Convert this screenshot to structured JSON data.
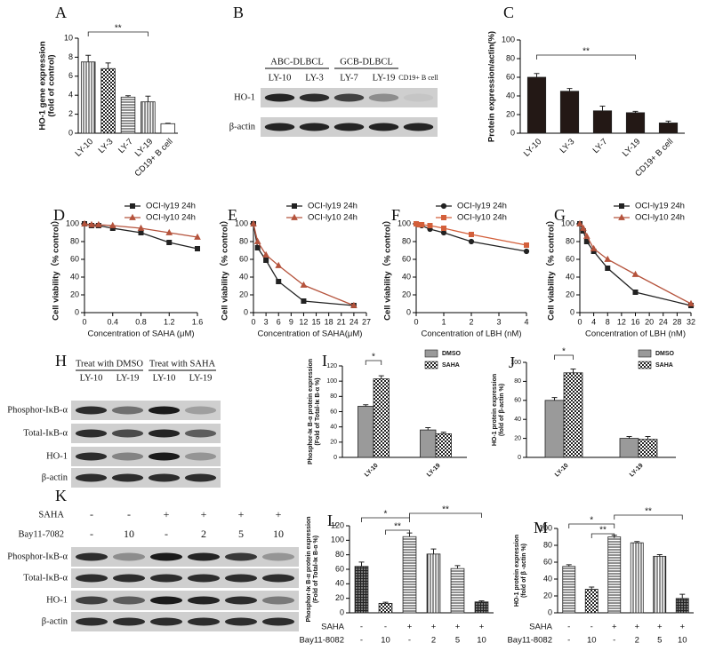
{
  "chart_data": [
    {
      "type": "bar",
      "panel": "A",
      "ylabel": [
        "HO-1 gene expression",
        "(fold of control)"
      ],
      "categories": [
        "LY-10",
        "LY-3",
        "LY-7",
        "LY-19",
        "CD19+ B cell"
      ],
      "values": [
        7.5,
        6.8,
        3.8,
        3.3,
        1.0
      ],
      "errors": [
        0.7,
        0.6,
        0.15,
        0.6,
        0.05
      ],
      "patterns": [
        "vertical",
        "checker",
        "horizontal",
        "vertical",
        "white"
      ],
      "ylim": [
        0,
        10
      ],
      "yticks": [
        0,
        2,
        4,
        6,
        8,
        10
      ],
      "annotations": [
        "**"
      ]
    },
    {
      "type": "bar",
      "panel": "C",
      "ylabel": [
        "Protein expression/actin(%)"
      ],
      "categories": [
        "LY-10",
        "LY-3",
        "LY-7",
        "LY-19",
        "CD19+ B cell"
      ],
      "values": [
        60,
        45,
        24,
        22,
        11
      ],
      "errors": [
        4,
        3,
        5,
        1.5,
        2
      ],
      "color": "#231815",
      "ylim": [
        0,
        100
      ],
      "yticks": [
        0,
        20,
        40,
        60,
        80,
        100
      ],
      "annotations": [
        "**"
      ]
    },
    {
      "type": "line",
      "panel": "D",
      "ylabel": [
        "Cell viability（% control）"
      ],
      "xlabel": "Concentration of SAHA (μM)",
      "x": [
        0,
        0.1,
        0.2,
        0.4,
        0.8,
        1.2,
        1.6
      ],
      "xlim": [
        0,
        1.6
      ],
      "xticks": [
        0,
        0.4,
        0.8,
        1.2,
        1.6
      ],
      "ylim": [
        0,
        100
      ],
      "yticks": [
        0,
        20,
        40,
        60,
        80,
        100
      ],
      "series": [
        {
          "name": "OCI-ly19 24h",
          "color": "#222222",
          "marker": "square",
          "values": [
            100,
            98,
            98,
            95,
            90,
            79,
            72
          ]
        },
        {
          "name": "OCI-ly10 24h",
          "color": "#b5533c",
          "marker": "triangle",
          "values": [
            100,
            99,
            99,
            98,
            95,
            90,
            85
          ]
        }
      ]
    },
    {
      "type": "line",
      "panel": "E",
      "ylabel": [
        "Cell viability（% control）"
      ],
      "xlabel": "Concentration of SAHA(μM)",
      "x": [
        0,
        1,
        3,
        6,
        12,
        24
      ],
      "xlim": [
        0,
        27
      ],
      "xticks": [
        0,
        3,
        6,
        9,
        12,
        15,
        18,
        21,
        24,
        27
      ],
      "ylim": [
        0,
        100
      ],
      "yticks": [
        0,
        20,
        40,
        60,
        80,
        100
      ],
      "series": [
        {
          "name": "OCI-ly19 24h",
          "color": "#222222",
          "marker": "square",
          "values": [
            100,
            73,
            59,
            35,
            13,
            8
          ]
        },
        {
          "name": "OCI-ly10 24h",
          "color": "#b5533c",
          "marker": "triangle",
          "values": [
            100,
            80,
            65,
            53,
            31,
            8
          ]
        }
      ]
    },
    {
      "type": "line",
      "panel": "F",
      "ylabel": [
        "Cell viability（% control）"
      ],
      "xlabel": "Concentration of LBH (nM)",
      "x": [
        0,
        0.1,
        0.2,
        0.5,
        1,
        2,
        4
      ],
      "xlim": [
        0,
        4
      ],
      "xticks": [
        0,
        1,
        2,
        3,
        4
      ],
      "ylim": [
        0,
        100
      ],
      "yticks": [
        0,
        20,
        40,
        60,
        80,
        100
      ],
      "series": [
        {
          "name": "OCI-ly19 24h",
          "color": "#222222",
          "marker": "circle",
          "values": [
            100,
            99,
            98,
            94,
            90,
            80,
            69
          ]
        },
        {
          "name": "OCI-ly10 24h",
          "color": "#d35f3a",
          "marker": "square",
          "values": [
            100,
            99,
            99,
            98,
            95,
            88,
            76
          ]
        }
      ]
    },
    {
      "type": "line",
      "panel": "G",
      "ylabel": [
        "Cell viability（% control）"
      ],
      "xlabel": "Concentration of LBH (nM)",
      "x": [
        0,
        1,
        2,
        4,
        8,
        16,
        32
      ],
      "xlim": [
        0,
        32
      ],
      "xticks": [
        0,
        4,
        8,
        12,
        16,
        20,
        24,
        28,
        32
      ],
      "ylim": [
        0,
        100
      ],
      "yticks": [
        0,
        20,
        40,
        60,
        80,
        100
      ],
      "series": [
        {
          "name": "OCI-ly19 24h",
          "color": "#222222",
          "marker": "square",
          "values": [
            100,
            92,
            80,
            69,
            50,
            23,
            8
          ]
        },
        {
          "name": "OCI-ly10 24h",
          "color": "#b5533c",
          "marker": "triangle",
          "values": [
            100,
            95,
            86,
            72,
            60,
            43,
            10
          ]
        }
      ]
    },
    {
      "type": "bar",
      "panel": "I",
      "ylabel": [
        "Phosphor-Iκ B-α  protein expression",
        "(Fold of Total-Iκ B-α %)"
      ],
      "categories": [
        "LY-10",
        "LY-19"
      ],
      "ylim": [
        0,
        120
      ],
      "yticks": [
        0,
        20,
        40,
        60,
        80,
        100,
        120
      ],
      "annotations": [
        "*"
      ],
      "series": [
        {
          "name": "DMSO",
          "color": "#9a9a9a",
          "values": [
            67,
            36
          ],
          "errors": [
            2,
            3
          ]
        },
        {
          "name": "SAHA",
          "pattern": "checker",
          "values": [
            103,
            31
          ],
          "errors": [
            4,
            2
          ]
        }
      ]
    },
    {
      "type": "bar",
      "panel": "J",
      "ylabel": [
        "HO-1 protein expression",
        "(fold of β-actin %)"
      ],
      "categories": [
        "LY-10",
        "LY-19"
      ],
      "ylim": [
        0,
        100
      ],
      "yticks": [
        0,
        20,
        40,
        60,
        80,
        100
      ],
      "annotations": [
        "*"
      ],
      "series": [
        {
          "name": "DMSO",
          "color": "#9a9a9a",
          "values": [
            60,
            20
          ],
          "errors": [
            3,
            2
          ]
        },
        {
          "name": "SAHA",
          "pattern": "checker",
          "values": [
            89,
            19
          ],
          "errors": [
            4,
            3
          ]
        }
      ]
    },
    {
      "type": "bar",
      "panel": "L",
      "ylabel": [
        "Phosphor-Iκ B-α  protein expression",
        "(Fold of Total-Iκ B-α %)"
      ],
      "conditions": [
        {
          "name": "SAHA",
          "values": [
            "-",
            "-",
            "+",
            "+",
            "+",
            "+"
          ]
        },
        {
          "name": "Bay11-8082",
          "values": [
            "-",
            "10",
            "-",
            "2",
            "5",
            "10"
          ]
        }
      ],
      "values": [
        64,
        13,
        105,
        81,
        61,
        15
      ],
      "errors": [
        6,
        1.5,
        5,
        7,
        4,
        1.5
      ],
      "patterns": [
        "grid",
        "checker",
        "horizontal",
        "vertical",
        "horizontal",
        "grid"
      ],
      "ylim": [
        0,
        120
      ],
      "yticks": [
        0,
        20,
        40,
        60,
        80,
        100,
        120
      ],
      "annotations": [
        "*",
        "**",
        "**"
      ]
    },
    {
      "type": "bar",
      "panel": "M",
      "ylabel": [
        "HO-1 protein expression",
        "(fold of β -actin %)"
      ],
      "conditions": [
        {
          "name": "SAHA",
          "values": [
            "-",
            "-",
            "+",
            "+",
            "+",
            "+"
          ]
        },
        {
          "name": "Bay11-8082",
          "values": [
            "-",
            "10",
            "-",
            "2",
            "5",
            "10"
          ]
        }
      ],
      "values": [
        55,
        28,
        90,
        83,
        67,
        17
      ],
      "errors": [
        2,
        2.5,
        2,
        1.5,
        2,
        5
      ],
      "patterns": [
        "horizontal",
        "checker",
        "horizontal",
        "vertical",
        "vertical",
        "grid"
      ],
      "ylim": [
        0,
        100
      ],
      "yticks": [
        0,
        20,
        40,
        60,
        80,
        100
      ],
      "annotations": [
        "*",
        "**",
        "**"
      ]
    }
  ],
  "blots": [
    {
      "panel": "B",
      "groups": [
        "ABC-DLBCL",
        "GCB-DLBCL"
      ],
      "lanes": [
        "LY-10",
        "LY-3",
        "LY-7",
        "LY-19",
        "CD19+ B cell"
      ],
      "rows": [
        "HO-1",
        "β-actin"
      ]
    },
    {
      "panel": "H",
      "groups": [
        "Treat with DMSO",
        "Treat with SAHA"
      ],
      "lanes": [
        "LY-10",
        "LY-19",
        "LY-10",
        "LY-19"
      ],
      "rows": [
        "Phosphor-IκB-α",
        "Total-IκB-α",
        "HO-1",
        "β-actin"
      ]
    },
    {
      "panel": "K",
      "conditions": [
        {
          "name": "SAHA",
          "values": [
            "-",
            "-",
            "+",
            "+",
            "+",
            "+"
          ]
        },
        {
          "name": "Bay11-7082",
          "values": [
            "-",
            "10",
            "-",
            "2",
            "5",
            "10"
          ]
        }
      ],
      "rows": [
        "Phosphor-IκB-α",
        "Total-IκB-α",
        "HO-1",
        "β-actin"
      ]
    }
  ]
}
